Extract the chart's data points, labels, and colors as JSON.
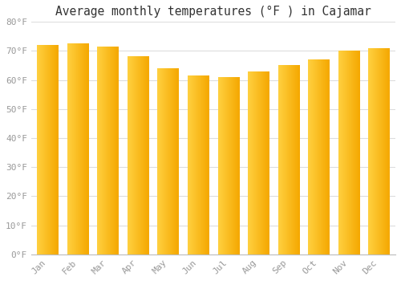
{
  "title": "Average monthly temperatures (°F ) in Cajamar",
  "months": [
    "Jan",
    "Feb",
    "Mar",
    "Apr",
    "May",
    "Jun",
    "Jul",
    "Aug",
    "Sep",
    "Oct",
    "Nov",
    "Dec"
  ],
  "values": [
    72,
    72.5,
    71.5,
    68,
    64,
    61.5,
    61,
    63,
    65,
    67,
    70,
    71
  ],
  "ylim": [
    0,
    80
  ],
  "yticks": [
    0,
    10,
    20,
    30,
    40,
    50,
    60,
    70,
    80
  ],
  "ytick_labels": [
    "0°F",
    "10°F",
    "20°F",
    "30°F",
    "40°F",
    "50°F",
    "60°F",
    "70°F",
    "80°F"
  ],
  "bar_color_left": "#FFD040",
  "bar_color_right": "#F5A800",
  "background_color": "#FFFFFF",
  "plot_bg_color": "#FFFFFF",
  "grid_color": "#DDDDDD",
  "title_fontsize": 10.5,
  "tick_fontsize": 8,
  "tick_color": "#999999",
  "bar_width": 0.7,
  "bar_gap_color": "#FFFFFF"
}
